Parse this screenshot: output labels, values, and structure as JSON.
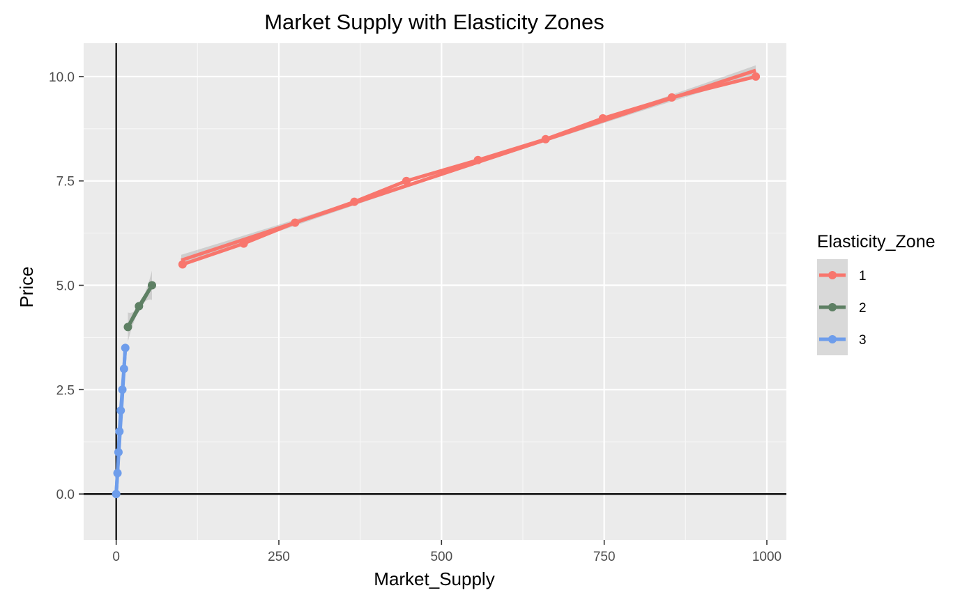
{
  "chart_data": {
    "type": "line",
    "title": "Market Supply with Elasticity Zones",
    "xlabel": "Market_Supply",
    "ylabel": "Price",
    "xlim": [
      -50,
      1030
    ],
    "ylim": [
      -1.1,
      10.8
    ],
    "x_ticks": [
      0,
      250,
      500,
      750,
      1000
    ],
    "y_ticks": [
      0.0,
      2.5,
      5.0,
      7.5,
      10.0
    ],
    "x_tick_labels": [
      "0",
      "250",
      "500",
      "750",
      "1000"
    ],
    "y_tick_labels": [
      "0.0",
      "2.5",
      "5.0",
      "7.5",
      "10.0"
    ],
    "grid": true,
    "reference_lines": {
      "x": 0,
      "y": 0
    },
    "legend": {
      "title": "Elasticity_Zone",
      "position": "right",
      "entries": [
        "1",
        "2",
        "3"
      ]
    },
    "smooth_band": true,
    "series": [
      {
        "name": "1",
        "color": "#F8766D",
        "points": [
          [
            102,
            5.5
          ],
          [
            196,
            6.0
          ],
          [
            275,
            6.5
          ],
          [
            366,
            7.0
          ],
          [
            446,
            7.5
          ],
          [
            556,
            8.0
          ],
          [
            660,
            8.5
          ],
          [
            748,
            9.0
          ],
          [
            854,
            9.5
          ],
          [
            983,
            10.0
          ]
        ],
        "fit": [
          [
            100,
            5.6
          ],
          [
            983,
            10.15
          ]
        ],
        "band_halfwidth": [
          0.13,
          0.04,
          0.12
        ]
      },
      {
        "name": "2",
        "color": "#5E8064",
        "points": [
          [
            18,
            4.0
          ],
          [
            35,
            4.5
          ],
          [
            55,
            5.0
          ]
        ],
        "fit": [
          [
            18,
            4.0
          ],
          [
            55,
            5.0
          ]
        ],
        "band_halfwidth": [
          0.35,
          0.05,
          0.35
        ]
      },
      {
        "name": "3",
        "color": "#6E9DEB",
        "points": [
          [
            0,
            0.0
          ],
          [
            2,
            0.5
          ],
          [
            3.5,
            1.0
          ],
          [
            5,
            1.5
          ],
          [
            7,
            2.0
          ],
          [
            9.5,
            2.5
          ],
          [
            12,
            3.0
          ],
          [
            14,
            3.5
          ]
        ],
        "fit": [
          [
            0,
            0.0
          ],
          [
            14,
            3.5
          ]
        ],
        "band_halfwidth": [
          0.15,
          0.03,
          0.15
        ]
      }
    ]
  }
}
